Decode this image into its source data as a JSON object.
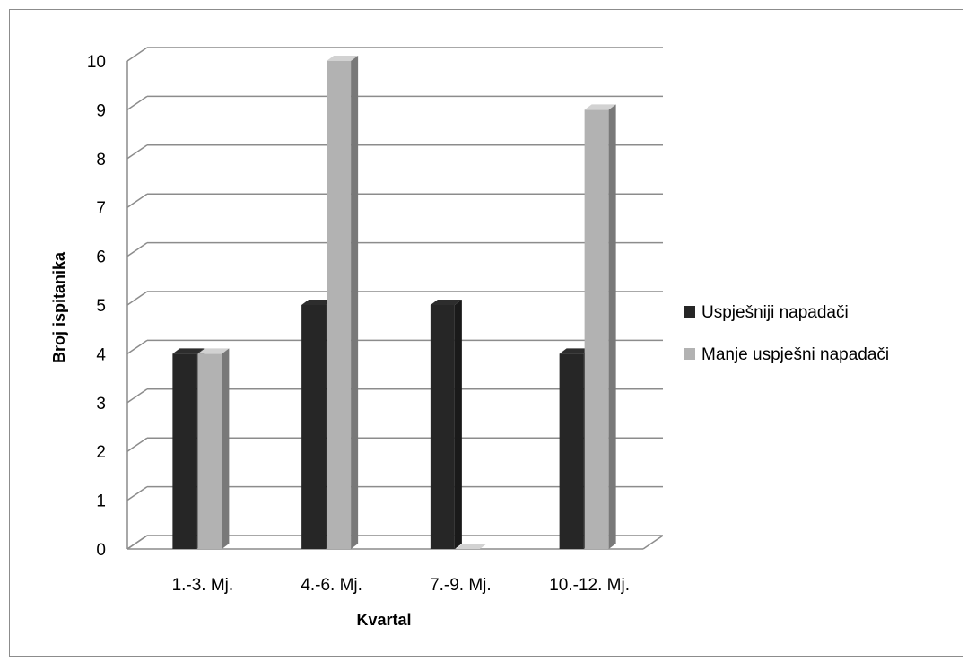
{
  "chart_data": {
    "type": "bar",
    "title": "",
    "xlabel": "Kvartal",
    "ylabel": "Broj ispitanika",
    "categories": [
      "1.-3. Mj.",
      "4.-6. Mj.",
      "7.-9. Mj.",
      "10.-12. Mj."
    ],
    "series": [
      {
        "name": "Uspješniji napadači",
        "values": [
          4,
          5,
          5,
          4
        ],
        "color": "#262626"
      },
      {
        "name": "Manje uspješni napadači",
        "values": [
          4,
          10,
          0,
          9
        ],
        "color": "#b2b2b2"
      }
    ],
    "ylim": [
      0,
      10
    ],
    "yticks": [
      0,
      1,
      2,
      3,
      4,
      5,
      6,
      7,
      8,
      9,
      10
    ],
    "grid": true,
    "legend_position": "right",
    "three_d": true
  }
}
